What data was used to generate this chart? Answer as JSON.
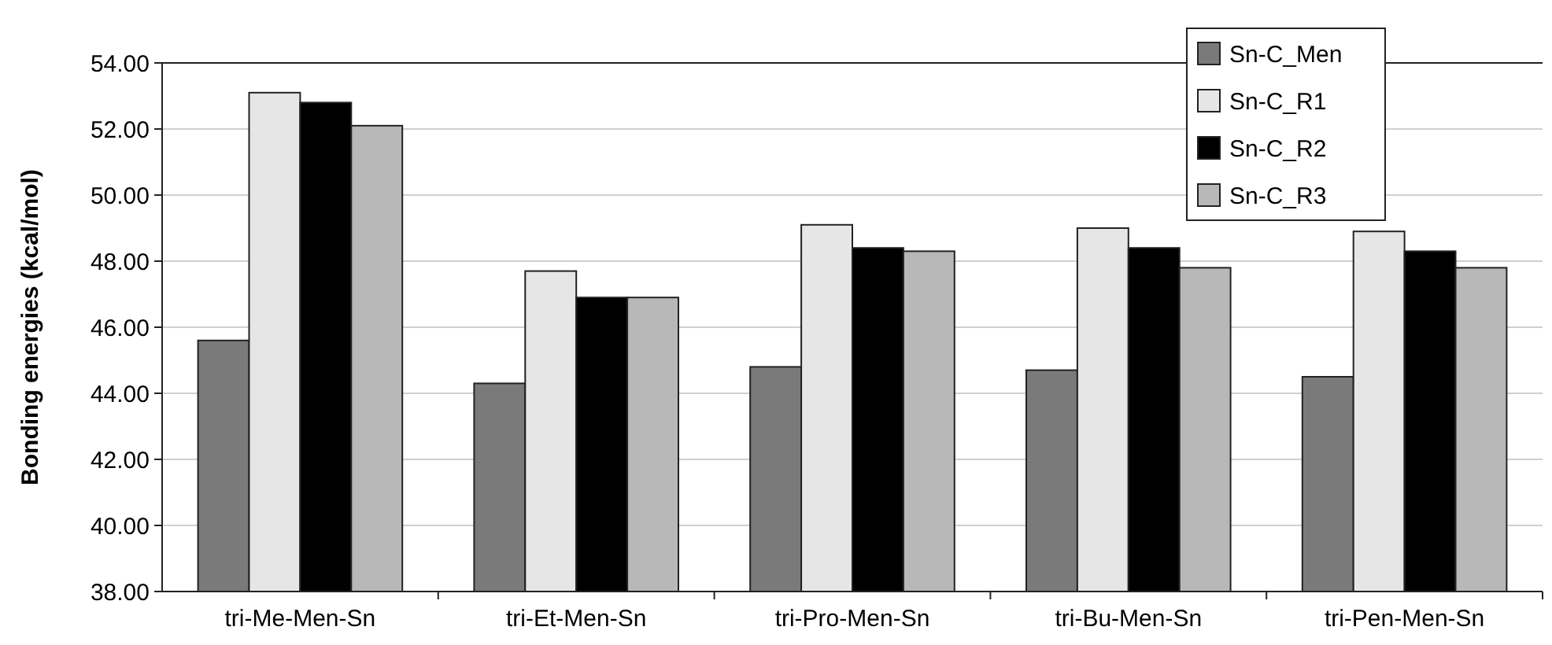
{
  "chart_data": {
    "type": "bar",
    "ylabel": "Bonding energies (kcal/mol)",
    "categories": [
      "tri-Me-Men-Sn",
      "tri-Et-Men-Sn",
      "tri-Pro-Men-Sn",
      "tri-Bu-Men-Sn",
      "tri-Pen-Men-Sn"
    ],
    "series": [
      {
        "name": "Sn-C_Men",
        "color": "#7a7a7a",
        "values": [
          45.6,
          44.3,
          44.8,
          44.7,
          44.5
        ]
      },
      {
        "name": "Sn-C_R1",
        "color": "#e6e6e6",
        "values": [
          53.1,
          47.7,
          49.1,
          49.0,
          48.9
        ]
      },
      {
        "name": "Sn-C_R2",
        "color": "#000000",
        "values": [
          52.8,
          46.9,
          48.4,
          48.4,
          48.3
        ]
      },
      {
        "name": "Sn-C_R3",
        "color": "#b8b8b8",
        "values": [
          52.1,
          46.9,
          48.3,
          47.8,
          47.8
        ]
      }
    ],
    "ylim": [
      38,
      54
    ],
    "yticks": [
      {
        "value": 38,
        "label": "38.00"
      },
      {
        "value": 40,
        "label": "40.00"
      },
      {
        "value": 42,
        "label": "42.00"
      },
      {
        "value": 44,
        "label": "44.00"
      },
      {
        "value": 46,
        "label": "46.00"
      },
      {
        "value": 48,
        "label": "48.00"
      },
      {
        "value": 50,
        "label": "50.00"
      },
      {
        "value": 52,
        "label": "52.00"
      },
      {
        "value": 54,
        "label": "54.00"
      }
    ],
    "grid": "y",
    "legend": "top right"
  }
}
